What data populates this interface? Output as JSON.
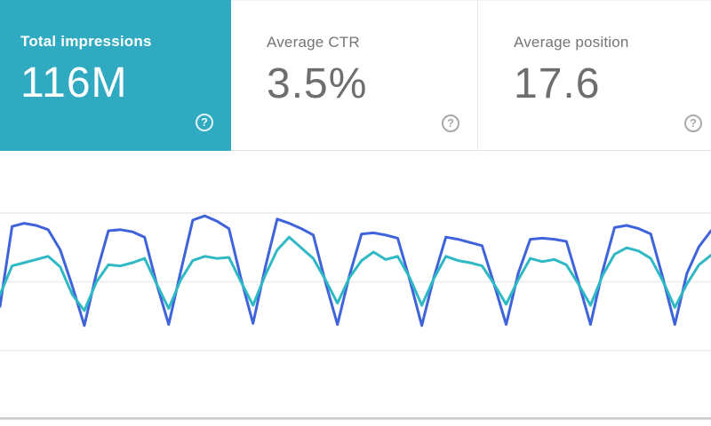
{
  "cards": [
    {
      "label": "Total impressions",
      "value": "116M",
      "selected": true,
      "accent_color": "#2FAAC0",
      "help_glyph": "?"
    },
    {
      "label": "Average CTR",
      "value": "3.5%",
      "selected": false,
      "help_glyph": "?"
    },
    {
      "label": "Average position",
      "value": "17.6",
      "selected": false,
      "help_glyph": "?"
    }
  ],
  "chart_data": {
    "type": "line",
    "title": "",
    "xlabel": "",
    "ylabel": "",
    "x_unit": "days (daily points, weekly weekday/weekend cycle, ~8.5 weeks)",
    "y_unit": "relative value, percent of plot height (0 = bottom of plot, 100 = top gridline)",
    "ylim": [
      0,
      110
    ],
    "grid": "horizontal",
    "legend": "none",
    "x": [
      0,
      1,
      2,
      3,
      4,
      5,
      6,
      7,
      8,
      9,
      10,
      11,
      12,
      13,
      14,
      15,
      16,
      17,
      18,
      19,
      20,
      21,
      22,
      23,
      24,
      25,
      26,
      27,
      28,
      29,
      30,
      31,
      32,
      33,
      34,
      35,
      36,
      37,
      38,
      39,
      40,
      41,
      42,
      43,
      44,
      45,
      46,
      47,
      48,
      49,
      50,
      51,
      52,
      53,
      54,
      55,
      56,
      57,
      58,
      59
    ],
    "series": [
      {
        "name": "blue",
        "color": "#3E63DB",
        "values": [
          19,
          94,
          97,
          95,
          91,
          72,
          38,
          1,
          50,
          90,
          91,
          89,
          84,
          40,
          2,
          52,
          100,
          104,
          99,
          92,
          45,
          3,
          55,
          101,
          97,
          92,
          86,
          42,
          2,
          48,
          87,
          88,
          86,
          83,
          44,
          1,
          46,
          84,
          82,
          79,
          76,
          40,
          2,
          50,
          82,
          83,
          82,
          80,
          42,
          2,
          52,
          93,
          95,
          92,
          87,
          46,
          2,
          50,
          75,
          90
        ]
      },
      {
        "name": "teal",
        "color": "#2FB9C4",
        "values": [
          30,
          57,
          60,
          63,
          66,
          56,
          30,
          15,
          42,
          58,
          57,
          60,
          64,
          40,
          17,
          44,
          62,
          66,
          64,
          65,
          42,
          20,
          48,
          72,
          84,
          74,
          64,
          44,
          22,
          46,
          62,
          70,
          63,
          66,
          46,
          20,
          45,
          66,
          62,
          60,
          57,
          40,
          21,
          44,
          64,
          61,
          63,
          58,
          40,
          20,
          48,
          68,
          74,
          71,
          64,
          43,
          18,
          40,
          58,
          67
        ]
      }
    ]
  },
  "colors": {
    "selected_card_background": "#2FAAC0",
    "blue_line": "#3E63DB",
    "teal_line": "#2FB9C4",
    "gridline": "#ececec",
    "baseline": "#c9c9c9",
    "label_gray": "#757575",
    "value_gray": "#6e6e6e"
  }
}
